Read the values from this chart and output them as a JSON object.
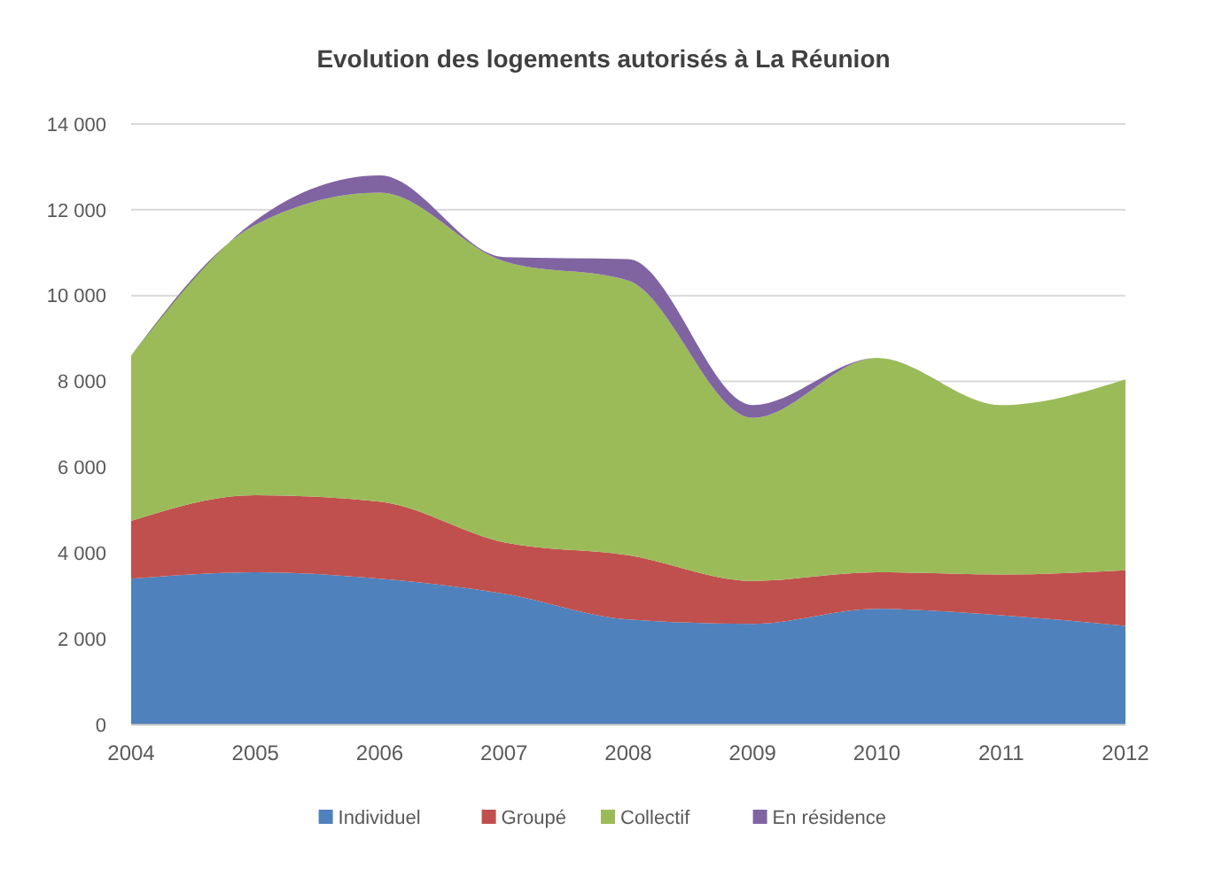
{
  "chart_data": {
    "type": "area",
    "stacked": true,
    "title": "Evolution  des logements autorisés à La Réunion",
    "categories": [
      "2004",
      "2005",
      "2006",
      "2007",
      "2008",
      "2009",
      "2010",
      "2011",
      "2012"
    ],
    "series": [
      {
        "name": "Individuel",
        "color": "#4f81bd",
        "values": [
          3400,
          3550,
          3400,
          3050,
          2450,
          2350,
          2700,
          2550,
          2300
        ]
      },
      {
        "name": "Groupé",
        "color": "#c0504d",
        "values": [
          1350,
          1800,
          1800,
          1200,
          1500,
          1000,
          850,
          950,
          1300
        ]
      },
      {
        "name": "Collectif",
        "color": "#9bbb59",
        "values": [
          3850,
          6300,
          7200,
          6550,
          6400,
          3800,
          5000,
          3950,
          4450
        ]
      },
      {
        "name": "En résidence",
        "color": "#8064a2",
        "values": [
          0,
          100,
          400,
          100,
          500,
          300,
          0,
          0,
          0
        ]
      }
    ],
    "ylim": [
      0,
      14000
    ],
    "yticks": [
      0,
      {
        "value": 2000,
        "label": "2 000"
      },
      {
        "value": 4000,
        "label": "4 000"
      },
      {
        "value": 6000,
        "label": "6 000"
      },
      {
        "value": 8000,
        "label": "8 000"
      },
      {
        "value": 10000,
        "label": "10 000"
      },
      {
        "value": 12000,
        "label": "12 000"
      },
      {
        "value": 14000,
        "label": "14 000"
      }
    ],
    "grid": "y",
    "legend": "bottom"
  }
}
